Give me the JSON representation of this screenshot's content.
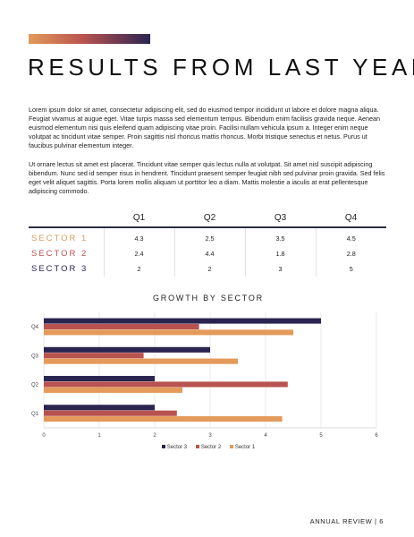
{
  "title": "RESULTS FROM LAST YEAR",
  "paragraphs": [
    "Lorem ipsum dolor sit amet, consectetur adipiscing elit, sed do eiusmod tempor incididunt ut labore et dolore magna aliqua. Feugiat vivamus at augue eget. Vitae turpis massa sed elementum tempus. Bibendum enim facilisis gravida neque. Aenean euismod elementum nisi quis eleifend quam adipiscing vitae proin. Facilisi nullam vehicula ipsum a. Integer enim neque volutpat ac tincidunt vitae semper. Proin sagittis nisl rhoncus mattis rhoncus. Morbi tristique senectus et netus. Purus ut faucibus pulvinar elementum integer.",
    "Ut ornare lectus sit amet est placerat. Tincidunt vitae semper quis lectus nulla at volutpat. Sit amet nisl suscipit adipiscing bibendum. Nunc sed id semper risus in hendrerit. Tincidunt praesent semper feugiat nibh sed pulvinar proin gravida. Sed felis eget velit aliquet sagittis. Porta lorem mollis aliquam ut porttitor leo a diam. Mattis molestie a iaculis at erat pellentesque adipiscing commodo."
  ],
  "table": {
    "headers": [
      "Q1",
      "Q2",
      "Q3",
      "Q4"
    ],
    "rows": [
      {
        "label": "SECTOR 1",
        "color": "#e39a5a",
        "values": [
          "4.3",
          "2.5",
          "3.5",
          "4.5"
        ]
      },
      {
        "label": "SECTOR 2",
        "color": "#b8534f",
        "values": [
          "2.4",
          "4.4",
          "1.8",
          "2.8"
        ]
      },
      {
        "label": "SECTOR 3",
        "color": "#2a2450",
        "values": [
          "2",
          "2",
          "3",
          "5"
        ]
      }
    ]
  },
  "chart_data": {
    "type": "bar",
    "orientation": "horizontal",
    "title": "GROWTH BY SECTOR",
    "categories": [
      "Q1",
      "Q2",
      "Q3",
      "Q4"
    ],
    "series": [
      {
        "name": "Sector 3",
        "color": "#2a2450",
        "values": [
          2,
          2,
          3,
          5
        ]
      },
      {
        "name": "Sector 2",
        "color": "#b8534f",
        "values": [
          2.4,
          4.4,
          1.8,
          2.8
        ]
      },
      {
        "name": "Sector 1",
        "color": "#e39a5a",
        "values": [
          4.3,
          2.5,
          3.5,
          4.5
        ]
      }
    ],
    "xlim": [
      0,
      6
    ],
    "xticks": [
      "0",
      "1",
      "2",
      "3",
      "4",
      "5",
      "6"
    ],
    "grid": true,
    "legend": "bottom"
  },
  "footer": {
    "label": "ANNUAL REVIEW",
    "separator": "|",
    "page": "6"
  }
}
